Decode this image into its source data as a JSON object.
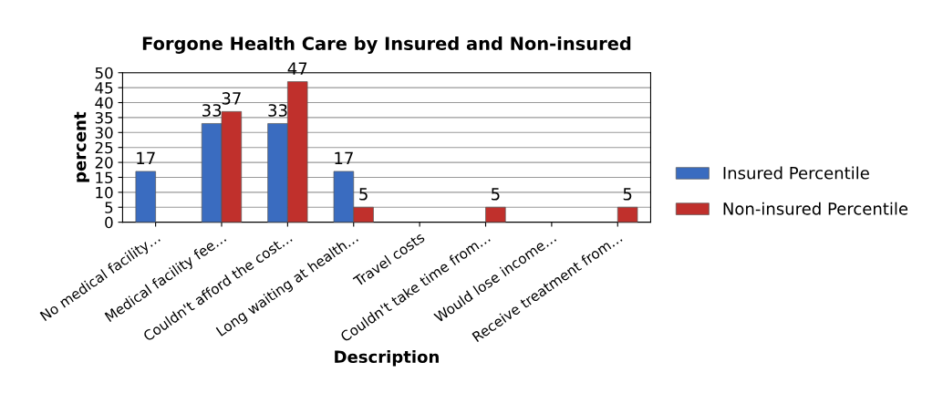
{
  "chart_data": {
    "type": "bar",
    "title": "Forgone Health Care by Insured and Non-insured",
    "xlabel": "Description",
    "ylabel": "percent",
    "categories": [
      "No medical facility…",
      "Medical facility fee…",
      "Couldn't afford the cost…",
      "Long waiting at health…",
      "Travel costs",
      "Couldn't take time from…",
      "Would lose income…",
      "Receive treatment from…"
    ],
    "series": [
      {
        "name": "Insured Percentile",
        "color": "#3a6cc0",
        "values": [
          17,
          33,
          33,
          17,
          null,
          null,
          null,
          null
        ]
      },
      {
        "name": "Non-insured Percentile",
        "color": "#c0302c",
        "values": [
          null,
          37,
          47,
          5,
          null,
          5,
          null,
          5
        ]
      }
    ],
    "ylim": [
      0,
      50
    ],
    "yticks": [
      0,
      5,
      10,
      15,
      20,
      25,
      30,
      35,
      40,
      45,
      50
    ],
    "grid": "y",
    "legend": "right",
    "data_labels": true
  }
}
